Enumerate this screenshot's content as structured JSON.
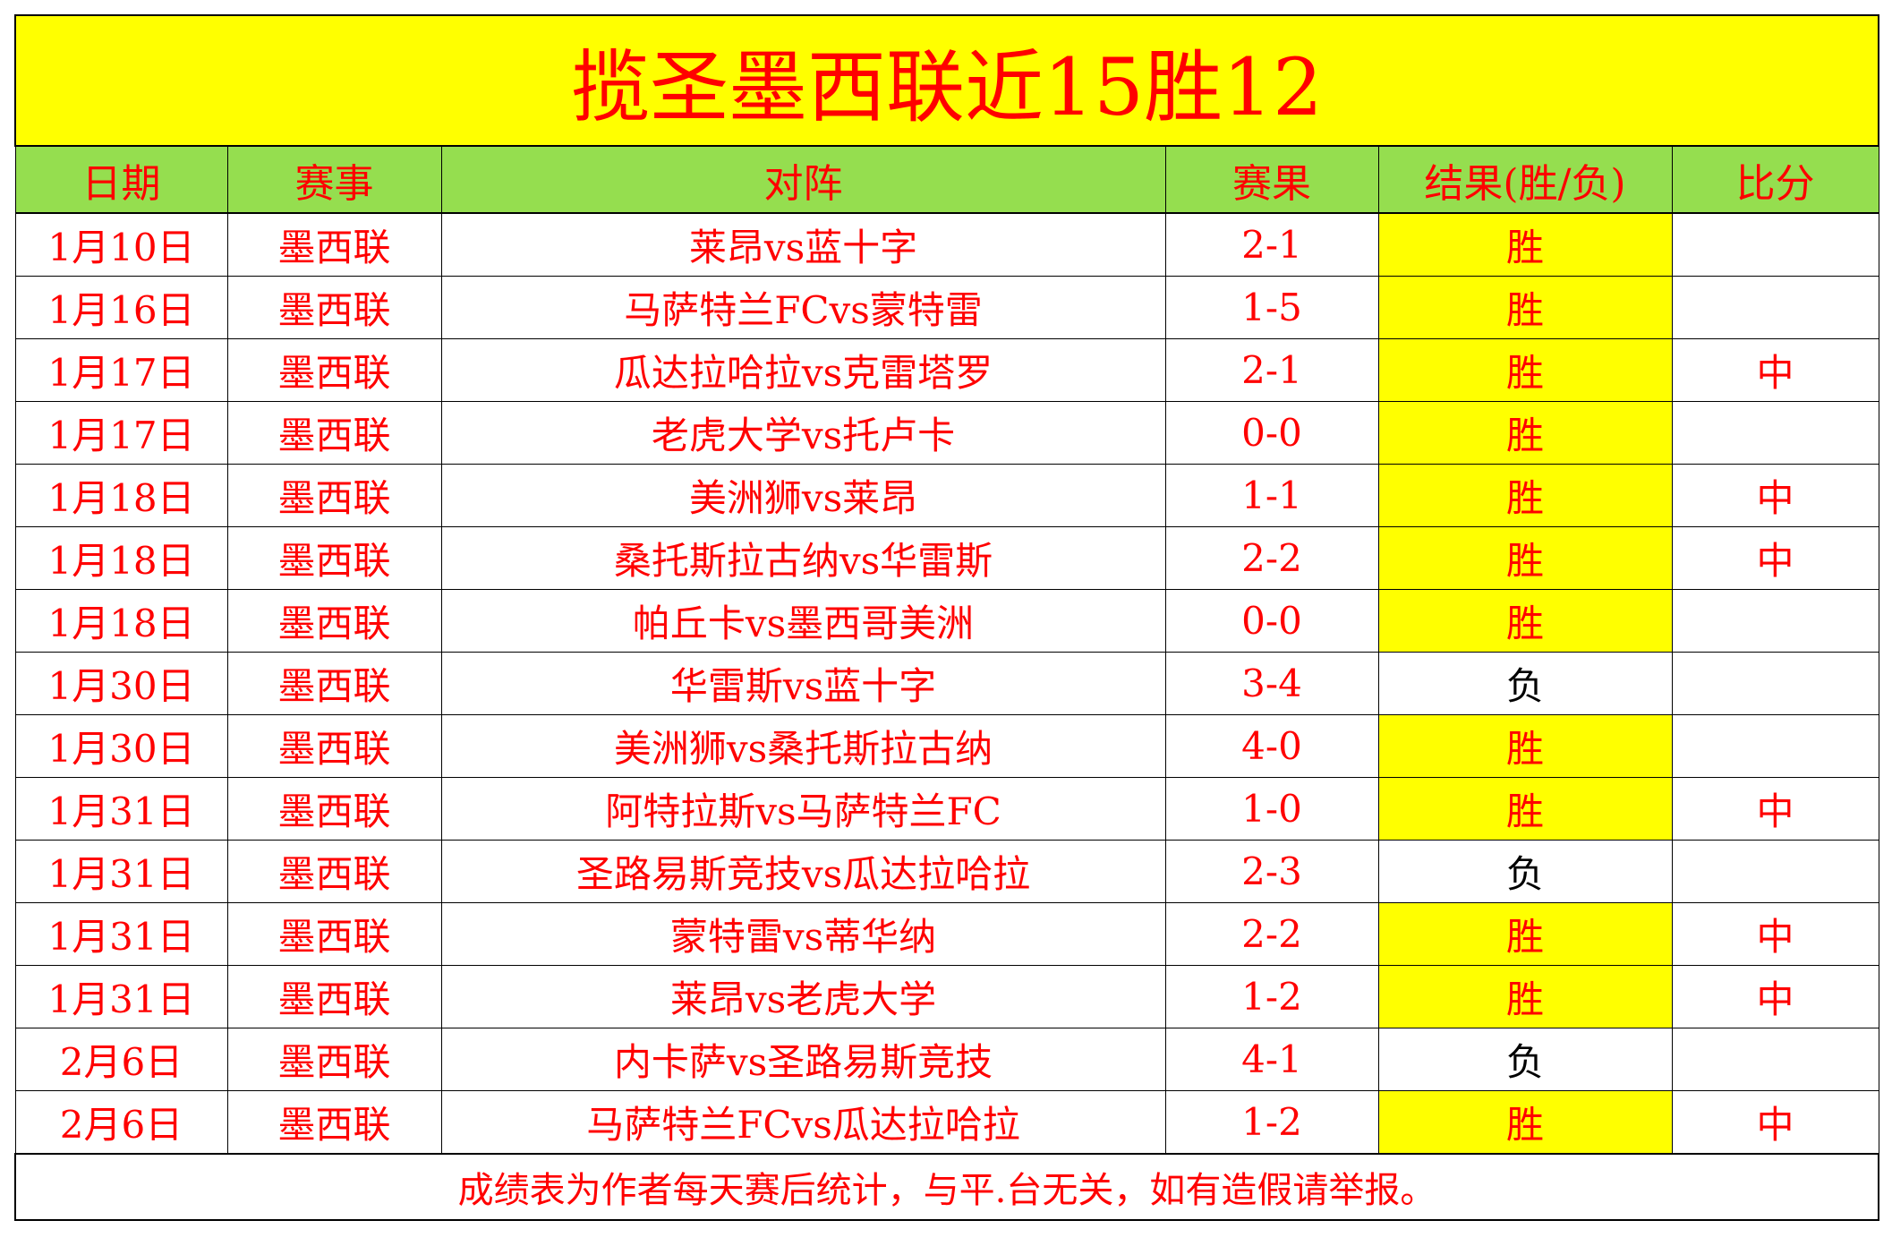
{
  "title": "揽圣墨西联近15胜12",
  "headers": [
    "日期",
    "赛事",
    "对阵",
    "赛果",
    "结果(胜/负)",
    "比分"
  ],
  "colors": {
    "text": "#ff0000",
    "title_bg": "#ffff00",
    "header_bg": "#95de4f",
    "win_bg": "#ffff00",
    "loss_text": "#000000"
  },
  "rows": [
    {
      "date": "1月10日",
      "league": "墨西联",
      "match": "莱昂vs蓝十字",
      "score": "2-1",
      "result": "胜",
      "mark": ""
    },
    {
      "date": "1月16日",
      "league": "墨西联",
      "match": "马萨特兰FCvs蒙特雷",
      "score": "1-5",
      "result": "胜",
      "mark": ""
    },
    {
      "date": "1月17日",
      "league": "墨西联",
      "match": "瓜达拉哈拉vs克雷塔罗",
      "score": "2-1",
      "result": "胜",
      "mark": "中"
    },
    {
      "date": "1月17日",
      "league": "墨西联",
      "match": "老虎大学vs托卢卡",
      "score": "0-0",
      "result": "胜",
      "mark": ""
    },
    {
      "date": "1月18日",
      "league": "墨西联",
      "match": "美洲狮vs莱昂",
      "score": "1-1",
      "result": "胜",
      "mark": "中"
    },
    {
      "date": "1月18日",
      "league": "墨西联",
      "match": "桑托斯拉古纳vs华雷斯",
      "score": "2-2",
      "result": "胜",
      "mark": "中"
    },
    {
      "date": "1月18日",
      "league": "墨西联",
      "match": "帕丘卡vs墨西哥美洲",
      "score": "0-0",
      "result": "胜",
      "mark": ""
    },
    {
      "date": "1月30日",
      "league": "墨西联",
      "match": "华雷斯vs蓝十字",
      "score": "3-4",
      "result": "负",
      "mark": ""
    },
    {
      "date": "1月30日",
      "league": "墨西联",
      "match": "美洲狮vs桑托斯拉古纳",
      "score": "4-0",
      "result": "胜",
      "mark": ""
    },
    {
      "date": "1月31日",
      "league": "墨西联",
      "match": "阿特拉斯vs马萨特兰FC",
      "score": "1-0",
      "result": "胜",
      "mark": "中"
    },
    {
      "date": "1月31日",
      "league": "墨西联",
      "match": "圣路易斯竞技vs瓜达拉哈拉",
      "score": "2-3",
      "result": "负",
      "mark": ""
    },
    {
      "date": "1月31日",
      "league": "墨西联",
      "match": "蒙特雷vs蒂华纳",
      "score": "2-2",
      "result": "胜",
      "mark": "中"
    },
    {
      "date": "1月31日",
      "league": "墨西联",
      "match": "莱昂vs老虎大学",
      "score": "1-2",
      "result": "胜",
      "mark": "中"
    },
    {
      "date": "2月6日",
      "league": "墨西联",
      "match": "内卡萨vs圣路易斯竞技",
      "score": "4-1",
      "result": "负",
      "mark": ""
    },
    {
      "date": "2月6日",
      "league": "墨西联",
      "match": "马萨特兰FCvs瓜达拉哈拉",
      "score": "1-2",
      "result": "胜",
      "mark": "中"
    }
  ],
  "footer": "成绩表为作者每天赛后统计，与平.台无关，如有造假请举报。"
}
